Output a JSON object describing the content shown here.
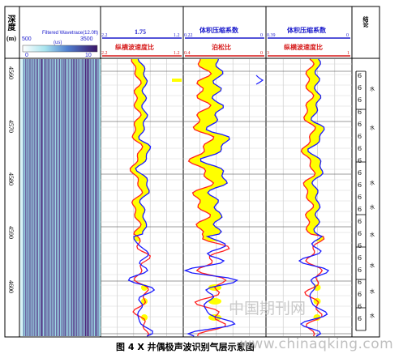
{
  "header": {
    "depth_label": "深度",
    "depth_unit": "(m)",
    "wavetrace_title": "Filtered Wavetrace(12.0ft)",
    "wavetrace_scale_min": "500",
    "wavetrace_scale_max": "3500",
    "wavetrace_scale_unit": "(us)",
    "colorbar_min": "0",
    "colorbar_max": "10",
    "track2_value": "1.75",
    "track2_left": "2.2",
    "track2_right": "1.2",
    "track2_title": "纵横波速度比",
    "track2b_left": "2.2",
    "track2b_right": "1.2",
    "track3_title_top": "体积压缩系数",
    "track3_left_top": "0.22",
    "track3_right_top": "0",
    "track3_title": "泊松比",
    "track3_left": "0.4",
    "track3_right": "0",
    "track4_title_top": "体积压缩系数",
    "track4_left_top": "0.39",
    "track4_right_top": "0",
    "track4_title": "纵横波速度比",
    "track4_left": "3",
    "track4_right": "1",
    "conclusion_title": "结论"
  },
  "depth_ticks": [
    "4560",
    "4570",
    "4580",
    "4590",
    "4600"
  ],
  "zone_labels": [
    "水",
    "水",
    "水",
    "水",
    "水",
    "水",
    "水",
    "水"
  ],
  "caption": "图 4    X 井偶极声波识别气层示意图",
  "watermark_cn": "中国期刊网",
  "watermark_url": "www.chinaqking.com",
  "colors": {
    "gas_fill": "#ffff00",
    "curve_blue": "#1a1aff",
    "curve_red": "#ff2020",
    "wave_dark": "#4a1f78",
    "wave_light": "#9edbe6",
    "header_blue": "#1a1acc",
    "header_red": "#d61a1a"
  }
}
